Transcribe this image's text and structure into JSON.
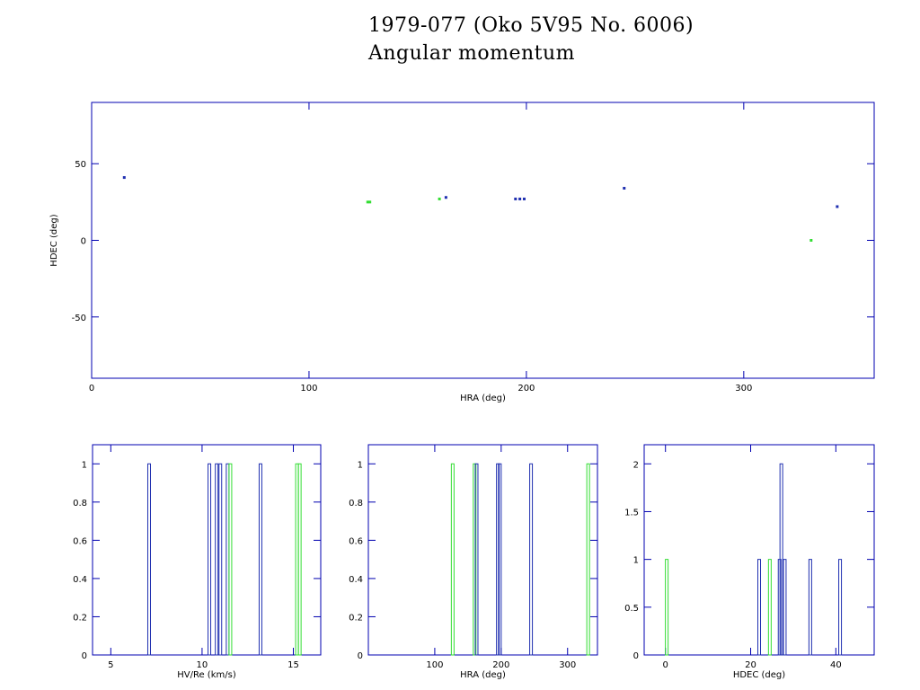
{
  "header": {
    "title_line1": "1979-077 (Oko 5V95 No. 6006)",
    "title_line2": "Angular momentum"
  },
  "colors": {
    "blue": "#1f2fb0",
    "green": "#33dd33",
    "frame": "#0000b0",
    "text": "#000000"
  },
  "chart_data": [
    {
      "type": "scatter",
      "xlabel": "HRA (deg)",
      "ylabel": "HDEC (deg)",
      "xlim": [
        0,
        360
      ],
      "ylim": [
        -90,
        90
      ],
      "xticks": [
        0,
        100,
        200,
        300
      ],
      "yticks": [
        -50,
        0,
        50
      ],
      "series": [
        {
          "color": "blue",
          "points": [
            [
              15,
              41
            ],
            [
              163,
              28
            ],
            [
              195,
              27
            ],
            [
              197,
              27
            ],
            [
              199,
              27
            ],
            [
              245,
              34
            ],
            [
              343,
              22
            ]
          ]
        },
        {
          "color": "green",
          "points": [
            [
              127,
              25
            ],
            [
              128,
              25
            ],
            [
              160,
              27
            ],
            [
              331,
              0
            ]
          ]
        }
      ]
    },
    {
      "type": "bar",
      "xlabel": "HV/Re (km/s)",
      "xlim": [
        4,
        16.5
      ],
      "ylim": [
        0,
        1.1
      ],
      "xticks": [
        5,
        10,
        15
      ],
      "yticks": [
        0,
        0.2,
        0.4,
        0.6,
        0.8,
        1
      ],
      "bars": [
        {
          "x": 7.1,
          "value": 1,
          "color": "blue"
        },
        {
          "x": 10.4,
          "value": 1,
          "color": "blue"
        },
        {
          "x": 10.8,
          "value": 1,
          "color": "blue"
        },
        {
          "x": 11.0,
          "value": 1,
          "color": "blue"
        },
        {
          "x": 11.4,
          "value": 1,
          "color": "blue"
        },
        {
          "x": 11.55,
          "value": 1,
          "color": "green"
        },
        {
          "x": 13.2,
          "value": 1,
          "color": "blue"
        },
        {
          "x": 15.2,
          "value": 1,
          "color": "green"
        },
        {
          "x": 15.35,
          "value": 1,
          "color": "green"
        }
      ]
    },
    {
      "type": "bar",
      "xlabel": "HRA (deg)",
      "xlim": [
        0,
        345
      ],
      "ylim": [
        0,
        1.1
      ],
      "xticks": [
        100,
        200,
        300
      ],
      "yticks": [
        0,
        0.2,
        0.4,
        0.6,
        0.8,
        1
      ],
      "bars": [
        {
          "x": 127,
          "value": 1,
          "color": "green"
        },
        {
          "x": 160,
          "value": 1,
          "color": "green"
        },
        {
          "x": 163,
          "value": 1,
          "color": "blue"
        },
        {
          "x": 195,
          "value": 1,
          "color": "blue"
        },
        {
          "x": 198,
          "value": 1,
          "color": "blue"
        },
        {
          "x": 245,
          "value": 1,
          "color": "blue"
        },
        {
          "x": 331,
          "value": 1,
          "color": "green"
        }
      ]
    },
    {
      "type": "bar",
      "xlabel": "HDEC (deg)",
      "xlim": [
        -5,
        49
      ],
      "ylim": [
        0,
        2.2
      ],
      "xticks": [
        0,
        20,
        40
      ],
      "yticks": [
        0,
        0.5,
        1,
        1.5,
        2
      ],
      "bars": [
        {
          "x": 0.3,
          "value": 1,
          "color": "green"
        },
        {
          "x": 22,
          "value": 1,
          "color": "blue"
        },
        {
          "x": 24.5,
          "value": 1,
          "color": "green"
        },
        {
          "x": 26.8,
          "value": 1,
          "color": "blue"
        },
        {
          "x": 27.2,
          "value": 2,
          "color": "blue"
        },
        {
          "x": 28,
          "value": 1,
          "color": "blue"
        },
        {
          "x": 34,
          "value": 1,
          "color": "blue"
        },
        {
          "x": 41,
          "value": 1,
          "color": "blue"
        }
      ]
    }
  ]
}
